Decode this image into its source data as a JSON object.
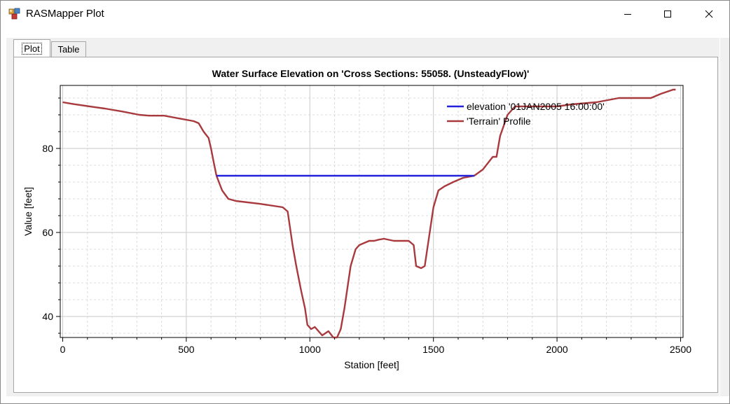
{
  "window": {
    "title": "RASMapper Plot",
    "icon": "rasmapper-plot-icon",
    "controls": [
      "minimize-icon",
      "maximize-icon",
      "close-icon"
    ]
  },
  "tabs": [
    {
      "label": "Plot",
      "active": true
    },
    {
      "label": "Table",
      "active": false
    }
  ],
  "colors": {
    "elevation": "#2222dd",
    "terrain": "#a83a3e",
    "grid": "#c9c9c9",
    "axis": "#000000"
  },
  "chart_data": {
    "type": "line",
    "title": "Water Surface Elevation on 'Cross Sections: 55058.   (UnsteadyFlow)'",
    "xlabel": "Station [feet]",
    "ylabel": "Value [feet]",
    "xlim": [
      -10,
      2510
    ],
    "ylim": [
      35,
      95
    ],
    "xticks": [
      0,
      500,
      1000,
      1500,
      2000,
      2500
    ],
    "yticks": [
      40,
      60,
      80
    ],
    "grid": true,
    "legend_position": "top-right",
    "series": [
      {
        "name": "elevation '01JAN2005 16:00:00'",
        "color": "#2222dd",
        "x": [
          622,
          1665
        ],
        "y": [
          73.5,
          73.5
        ]
      },
      {
        "name": "'Terrain' Profile",
        "color": "#a83a3e",
        "x": [
          0,
          40,
          120,
          170,
          240,
          310,
          350,
          410,
          530,
          550,
          560,
          570,
          590,
          600,
          610,
          622,
          645,
          670,
          700,
          800,
          890,
          910,
          930,
          945,
          965,
          980,
          990,
          1005,
          1020,
          1050,
          1075,
          1095,
          1110,
          1125,
          1140,
          1165,
          1185,
          1200,
          1220,
          1240,
          1260,
          1280,
          1300,
          1340,
          1370,
          1400,
          1420,
          1430,
          1450,
          1465,
          1500,
          1520,
          1545,
          1580,
          1620,
          1665,
          1700,
          1740,
          1755,
          1770,
          1800,
          1830,
          1860,
          1960,
          2000,
          2060,
          2160,
          2250,
          2380,
          2420,
          2470,
          2480
        ],
        "y": [
          91,
          90.6,
          89.9,
          89.5,
          88.8,
          88,
          87.8,
          87.8,
          86.5,
          86,
          85,
          84,
          82.5,
          80,
          77,
          73.5,
          70,
          68,
          67.5,
          66.8,
          66,
          65,
          57,
          52,
          46,
          42,
          38,
          37,
          37.5,
          35.5,
          36.5,
          35,
          35,
          37,
          42,
          52,
          56,
          57,
          57.5,
          58,
          58,
          58.3,
          58.5,
          58,
          58,
          58,
          57,
          52,
          51.5,
          52,
          66,
          70,
          71,
          72,
          73,
          73.5,
          75,
          78,
          78,
          83,
          88,
          90,
          90,
          90,
          90,
          90.5,
          91,
          92,
          92,
          93,
          94,
          94
        ]
      }
    ]
  }
}
